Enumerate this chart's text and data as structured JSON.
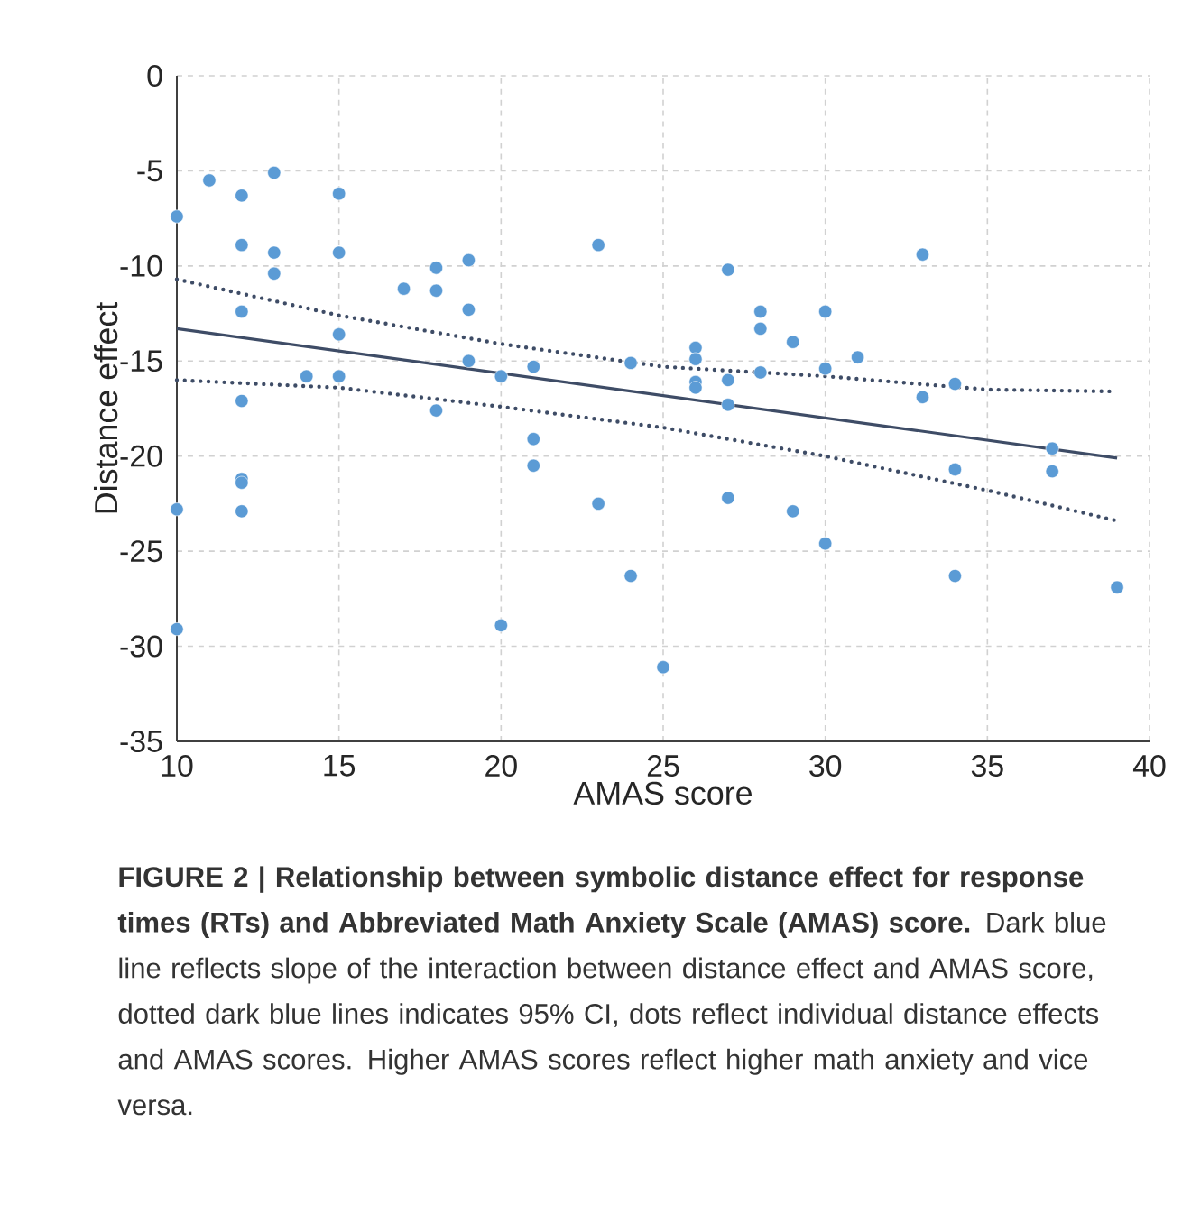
{
  "chart_data": {
    "type": "scatter",
    "xlabel": "AMAS score",
    "ylabel": "Distance effect",
    "xlim": [
      10,
      40
    ],
    "ylim": [
      -35,
      0
    ],
    "xticks": [
      10,
      15,
      20,
      25,
      30,
      35,
      40
    ],
    "yticks": [
      0,
      -5,
      -10,
      -15,
      -20,
      -25,
      -30,
      -35
    ],
    "grid": true,
    "series": [
      {
        "color": "#5b9bd5",
        "marker": "circle",
        "x": [
          10,
          10,
          10,
          11,
          12,
          12,
          12,
          12,
          12,
          12,
          12,
          13,
          13,
          13,
          14,
          15,
          15,
          15,
          15,
          17,
          18,
          18,
          18,
          19,
          19,
          19,
          20,
          20,
          21,
          21,
          21,
          23,
          23,
          24,
          24,
          25,
          26,
          26,
          26,
          26,
          27,
          27,
          27,
          27,
          28,
          28,
          28,
          29,
          29,
          30,
          30,
          30,
          31,
          33,
          33,
          34,
          34,
          34,
          37,
          37,
          39
        ],
        "values": [
          -7.4,
          -22.8,
          -29.1,
          -5.5,
          -6.3,
          -8.9,
          -12.4,
          -17.1,
          -21.2,
          -21.4,
          -22.9,
          -5.1,
          -9.3,
          -10.4,
          -15.8,
          -6.2,
          -9.3,
          -13.6,
          -15.8,
          -11.2,
          -10.1,
          -11.3,
          -17.6,
          -9.7,
          -12.3,
          -15.0,
          -15.8,
          -28.9,
          -15.3,
          -19.1,
          -20.5,
          -8.9,
          -22.5,
          -15.1,
          -26.3,
          -31.1,
          -14.3,
          -14.9,
          -16.1,
          -16.4,
          -10.2,
          -16.0,
          -17.3,
          -22.2,
          -12.4,
          -13.3,
          -15.6,
          -14.0,
          -22.9,
          -12.4,
          -15.4,
          -24.6,
          -14.8,
          -9.4,
          -16.9,
          -16.2,
          -20.7,
          -26.3,
          -19.6,
          -20.8,
          -26.9
        ]
      },
      {
        "type": "line",
        "color": "#3e4c66",
        "line_style": "solid",
        "x": [
          10,
          39
        ],
        "values": [
          -13.3,
          -20.1
        ]
      },
      {
        "type": "line",
        "color": "#3e4c66",
        "line_style": "dotted",
        "x": [
          10,
          15,
          20,
          25,
          30,
          35,
          39
        ],
        "values": [
          -10.7,
          -12.6,
          -14.1,
          -15.3,
          -15.8,
          -16.5,
          -16.6
        ]
      },
      {
        "type": "line",
        "color": "#3e4c66",
        "line_style": "dotted",
        "x": [
          10,
          15,
          20,
          25,
          30,
          35,
          39
        ],
        "values": [
          -16.0,
          -16.4,
          -17.4,
          -18.5,
          -20.0,
          -21.8,
          -23.4
        ]
      }
    ],
    "annotations": [
      "**FIGURE 2 | Relationship between symbolic distance effect for response times (RTs) and Abbreviated Math Anxiety Scale (AMAS) score.** Dark blue line reflects slope of the interaction between distance effect and AMAS score, dotted dark blue lines indicates 95% CI, dots reflect individual distance effects and AMAS scores. Higher AMAS scores reflect higher math anxiety and vice versa."
    ]
  }
}
